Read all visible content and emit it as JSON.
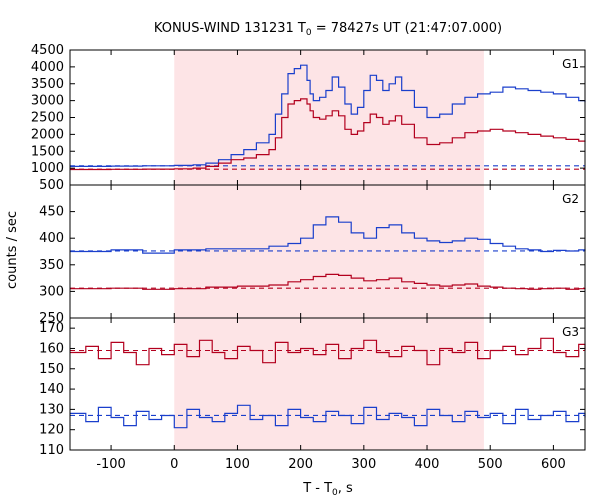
{
  "chart_data": {
    "type": "line",
    "title": "KONUS-WIND 131231 T",
    "title_sub": "0",
    "title_tail": " = 78427s UT (21:47:07.000)",
    "xlabel": "T - T",
    "xlabel_sub": "0",
    "xlabel_tail": ", s",
    "ylabel": "counts / sec",
    "xlim": [
      -165,
      650
    ],
    "xticks": [
      -100,
      0,
      100,
      200,
      300,
      400,
      500,
      600
    ],
    "shaded_interval": [
      0,
      490
    ],
    "colors": {
      "blue": "#1a3fcc",
      "red": "#b3001e",
      "light_blue": "#4aa6e0",
      "pink": "#e05aa0",
      "shade": "#fde4e6"
    },
    "panels": [
      {
        "name": "G1",
        "ylim": [
          500,
          4500
        ],
        "yticks": [
          500,
          1000,
          1500,
          2000,
          2500,
          3000,
          3500,
          4000,
          4500
        ],
        "background_levels": [
          {
            "series": "blue",
            "value": 1070
          },
          {
            "series": "red",
            "value": 970
          }
        ],
        "series": [
          {
            "color": "blue",
            "x": [
              -165,
              -100,
              -50,
              0,
              30,
              50,
              70,
              90,
              110,
              130,
              150,
              160,
              170,
              180,
              190,
              200,
              210,
              215,
              220,
              230,
              240,
              250,
              260,
              270,
              280,
              290,
              300,
              310,
              320,
              330,
              340,
              350,
              360,
              380,
              400,
              420,
              440,
              460,
              480,
              500,
              520,
              540,
              560,
              580,
              600,
              620,
              640,
              650
            ],
            "y": [
              1050,
              1060,
              1070,
              1080,
              1100,
              1150,
              1250,
              1400,
              1550,
              1750,
              2000,
              2600,
              3200,
              3800,
              3950,
              4050,
              3600,
              3200,
              3000,
              3100,
              3300,
              3700,
              3400,
              2900,
              2600,
              2800,
              3300,
              3750,
              3600,
              3300,
              3500,
              3700,
              3300,
              2800,
              2500,
              2600,
              2900,
              3100,
              3200,
              3250,
              3400,
              3350,
              3300,
              3250,
              3200,
              3100,
              3000,
              2950
            ]
          },
          {
            "color": "red",
            "x": [
              -165,
              -100,
              -50,
              0,
              30,
              50,
              70,
              90,
              110,
              130,
              150,
              160,
              170,
              180,
              190,
              200,
              210,
              215,
              220,
              230,
              240,
              250,
              260,
              270,
              280,
              290,
              300,
              310,
              320,
              330,
              340,
              350,
              360,
              380,
              400,
              420,
              440,
              460,
              480,
              500,
              520,
              540,
              560,
              580,
              600,
              620,
              640,
              650
            ],
            "y": [
              960,
              965,
              970,
              980,
              1000,
              1050,
              1150,
              1250,
              1300,
              1400,
              1550,
              1900,
              2500,
              2900,
              3000,
              3050,
              2900,
              2700,
              2500,
              2450,
              2550,
              2700,
              2550,
              2150,
              2000,
              2100,
              2350,
              2600,
              2500,
              2300,
              2400,
              2550,
              2300,
              1900,
              1700,
              1750,
              1900,
              2050,
              2100,
              2150,
              2100,
              2050,
              2000,
              1950,
              1900,
              1850,
              1800,
              1780
            ]
          }
        ]
      },
      {
        "name": "G2",
        "ylim": [
          250,
          500
        ],
        "yticks": [
          250,
          300,
          350,
          400,
          450
        ],
        "background_levels": [
          {
            "series": "blue",
            "value": 376
          },
          {
            "series": "red",
            "value": 306
          }
        ],
        "series": [
          {
            "color": "blue",
            "x": [
              -165,
              -100,
              -50,
              0,
              50,
              100,
              150,
              180,
              200,
              220,
              240,
              260,
              280,
              300,
              320,
              340,
              360,
              380,
              400,
              420,
              440,
              460,
              480,
              500,
              520,
              540,
              560,
              580,
              600,
              620,
              640,
              650
            ],
            "y": [
              375,
              378,
              372,
              378,
              380,
              380,
              385,
              390,
              400,
              425,
              440,
              430,
              410,
              400,
              420,
              425,
              410,
              400,
              395,
              392,
              395,
              400,
              398,
              390,
              385,
              380,
              378,
              375,
              377,
              376,
              378,
              376
            ]
          },
          {
            "color": "red",
            "x": [
              -165,
              -100,
              -50,
              0,
              50,
              100,
              150,
              180,
              200,
              220,
              240,
              260,
              280,
              300,
              320,
              340,
              360,
              380,
              400,
              420,
              440,
              460,
              480,
              500,
              520,
              540,
              560,
              580,
              600,
              620,
              640,
              650
            ],
            "y": [
              305,
              306,
              304,
              305,
              308,
              310,
              312,
              318,
              322,
              328,
              332,
              330,
              325,
              320,
              322,
              325,
              318,
              315,
              312,
              310,
              312,
              314,
              310,
              308,
              306,
              305,
              304,
              305,
              306,
              304,
              305,
              304
            ]
          }
        ]
      },
      {
        "name": "G3",
        "ylim": [
          110,
          175
        ],
        "yticks": [
          110,
          120,
          130,
          140,
          150,
          160,
          170
        ],
        "background_levels": [
          {
            "series": "red",
            "value": 159
          },
          {
            "series": "blue",
            "value": 127
          }
        ],
        "series": [
          {
            "color": "red",
            "x": [
              -165,
              -140,
              -120,
              -100,
              -80,
              -60,
              -40,
              -20,
              0,
              20,
              40,
              60,
              80,
              100,
              120,
              140,
              160,
              180,
              200,
              220,
              240,
              260,
              280,
              300,
              320,
              340,
              360,
              380,
              400,
              420,
              440,
              460,
              480,
              500,
              520,
              540,
              560,
              580,
              600,
              620,
              640,
              650
            ],
            "y": [
              158,
              161,
              155,
              163,
              158,
              152,
              160,
              157,
              162,
              156,
              164,
              158,
              155,
              161,
              159,
              153,
              163,
              158,
              160,
              157,
              162,
              155,
              160,
              164,
              158,
              156,
              161,
              159,
              152,
              160,
              158,
              163,
              155,
              159,
              161,
              157,
              160,
              165,
              158,
              156,
              162,
              159
            ]
          },
          {
            "color": "blue",
            "x": [
              -165,
              -140,
              -120,
              -100,
              -80,
              -60,
              -40,
              -20,
              0,
              20,
              40,
              60,
              80,
              100,
              120,
              140,
              160,
              180,
              200,
              220,
              240,
              260,
              280,
              300,
              320,
              340,
              360,
              380,
              400,
              420,
              440,
              460,
              480,
              500,
              520,
              540,
              560,
              580,
              600,
              620,
              640,
              650
            ],
            "y": [
              128,
              124,
              131,
              126,
              122,
              129,
              125,
              127,
              121,
              130,
              126,
              124,
              128,
              132,
              125,
              127,
              122,
              130,
              126,
              124,
              129,
              127,
              123,
              131,
              125,
              128,
              126,
              122,
              130,
              127,
              124,
              129,
              126,
              128,
              123,
              130,
              125,
              127,
              129,
              124,
              128,
              126
            ]
          }
        ]
      }
    ]
  }
}
